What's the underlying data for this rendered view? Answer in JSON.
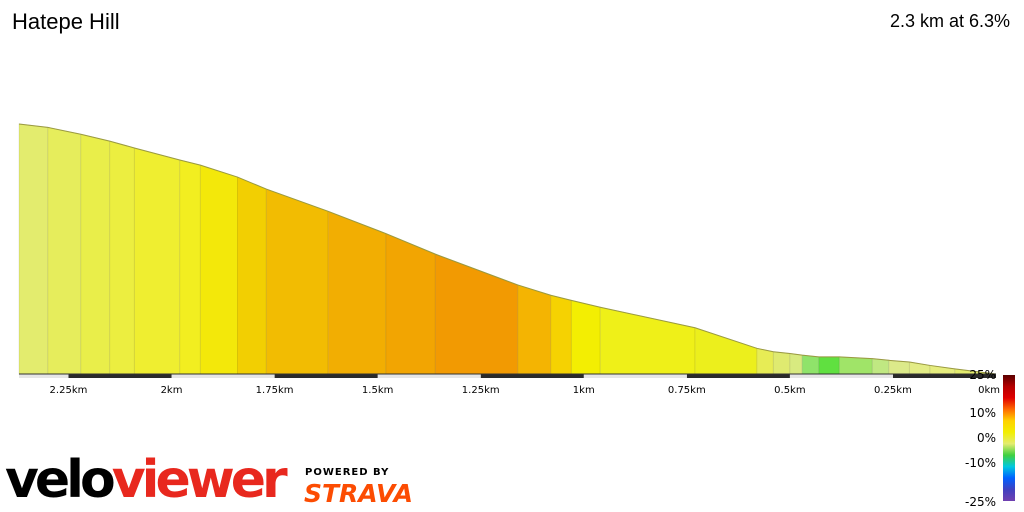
{
  "header": {
    "title": "Hatepe Hill",
    "summary": "2.3 km at 6.3%"
  },
  "branding": {
    "logo_part1": "velo",
    "logo_part2": "viewer",
    "powered_by": "POWERED BY",
    "strava": "STRAVA"
  },
  "chart_data": {
    "type": "area",
    "title": "Hatepe Hill",
    "xlabel": "",
    "ylabel": "",
    "x_direction": "reversed",
    "xlim": [
      2.37,
      0
    ],
    "x_unit": "km",
    "xticks": [
      {
        "value": 2.25,
        "label": "2.25km"
      },
      {
        "value": 2.0,
        "label": "2km"
      },
      {
        "value": 1.75,
        "label": "1.75km"
      },
      {
        "value": 1.5,
        "label": "1.5km"
      },
      {
        "value": 1.25,
        "label": "1.25km"
      },
      {
        "value": 1.0,
        "label": "1km"
      },
      {
        "value": 0.75,
        "label": "0.75km"
      },
      {
        "value": 0.5,
        "label": "0.5km"
      },
      {
        "value": 0.25,
        "label": "0.25km"
      },
      {
        "value": 0.0,
        "label": "0km"
      }
    ],
    "segments": [
      {
        "from": 2.37,
        "to": 2.3,
        "elev_start": 146,
        "elev_end": 144,
        "gradient": 2.5,
        "color": "#e3ec6e"
      },
      {
        "from": 2.3,
        "to": 2.22,
        "elev_start": 144,
        "elev_end": 140,
        "gradient": 3.0,
        "color": "#e6ed5c"
      },
      {
        "from": 2.22,
        "to": 2.15,
        "elev_start": 140,
        "elev_end": 136,
        "gradient": 3.5,
        "color": "#e9ee4a"
      },
      {
        "from": 2.15,
        "to": 2.09,
        "elev_start": 136,
        "elev_end": 132,
        "gradient": 4.0,
        "color": "#ecee40"
      },
      {
        "from": 2.09,
        "to": 1.98,
        "elev_start": 132,
        "elev_end": 125,
        "gradient": 4.5,
        "color": "#efee30"
      },
      {
        "from": 1.98,
        "to": 1.93,
        "elev_start": 125,
        "elev_end": 122,
        "gradient": 5.0,
        "color": "#f2ee20"
      },
      {
        "from": 1.93,
        "to": 1.84,
        "elev_start": 122,
        "elev_end": 115,
        "gradient": 6.0,
        "color": "#f3e80a"
      },
      {
        "from": 1.84,
        "to": 1.77,
        "elev_start": 115,
        "elev_end": 108,
        "gradient": 7.0,
        "color": "#f2cf02"
      },
      {
        "from": 1.77,
        "to": 1.62,
        "elev_start": 108,
        "elev_end": 95,
        "gradient": 8.0,
        "color": "#f2bc02"
      },
      {
        "from": 1.62,
        "to": 1.48,
        "elev_start": 95,
        "elev_end": 82,
        "gradient": 9.0,
        "color": "#f2ae02"
      },
      {
        "from": 1.48,
        "to": 1.36,
        "elev_start": 82,
        "elev_end": 70,
        "gradient": 10.0,
        "color": "#f2a502"
      },
      {
        "from": 1.36,
        "to": 1.16,
        "elev_start": 70,
        "elev_end": 52,
        "gradient": 11.0,
        "color": "#f29a02"
      },
      {
        "from": 1.16,
        "to": 1.08,
        "elev_start": 52,
        "elev_end": 46,
        "gradient": 8.0,
        "color": "#f4b402"
      },
      {
        "from": 1.08,
        "to": 1.03,
        "elev_start": 46,
        "elev_end": 43,
        "gradient": 6.5,
        "color": "#f5d202"
      },
      {
        "from": 1.03,
        "to": 0.96,
        "elev_start": 43,
        "elev_end": 39,
        "gradient": 5.5,
        "color": "#f3ee02"
      },
      {
        "from": 0.96,
        "to": 0.73,
        "elev_start": 39,
        "elev_end": 27,
        "gradient": 5.0,
        "color": "#eff018"
      },
      {
        "from": 0.73,
        "to": 0.58,
        "elev_start": 27,
        "elev_end": 15,
        "gradient": 4.0,
        "color": "#ecef1c"
      },
      {
        "from": 0.58,
        "to": 0.54,
        "elev_start": 15,
        "elev_end": 13,
        "gradient": 3.0,
        "color": "#e7ec55"
      },
      {
        "from": 0.54,
        "to": 0.5,
        "elev_start": 13,
        "elev_end": 12,
        "gradient": 2.5,
        "color": "#dfea70"
      },
      {
        "from": 0.5,
        "to": 0.47,
        "elev_start": 12,
        "elev_end": 11,
        "gradient": 2.0,
        "color": "#d8ea80"
      },
      {
        "from": 0.47,
        "to": 0.43,
        "elev_start": 11,
        "elev_end": 10,
        "gradient": 0.5,
        "color": "#8fe36a"
      },
      {
        "from": 0.43,
        "to": 0.38,
        "elev_start": 10,
        "elev_end": 10,
        "gradient": 0.0,
        "color": "#60e040"
      },
      {
        "from": 0.38,
        "to": 0.3,
        "elev_start": 10,
        "elev_end": 9,
        "gradient": 0.5,
        "color": "#a0e468"
      },
      {
        "from": 0.3,
        "to": 0.26,
        "elev_start": 9,
        "elev_end": 8,
        "gradient": 1.0,
        "color": "#c0e882"
      },
      {
        "from": 0.26,
        "to": 0.21,
        "elev_start": 8,
        "elev_end": 7,
        "gradient": 1.5,
        "color": "#dcea8a"
      },
      {
        "from": 0.21,
        "to": 0.16,
        "elev_start": 7,
        "elev_end": 5,
        "gradient": 2.0,
        "color": "#e3ec86"
      },
      {
        "from": 0.16,
        "to": 0.1,
        "elev_start": 5,
        "elev_end": 3,
        "gradient": 2.5,
        "color": "#e6ed7e"
      },
      {
        "from": 0.1,
        "to": 0.0,
        "elev_start": 3,
        "elev_end": 0,
        "gradient": 2.5,
        "color": "#e3ec6e"
      }
    ],
    "gradient_scale": {
      "labels": [
        "25%",
        "10%",
        "0%",
        "-10%",
        "-25%"
      ],
      "values": [
        25,
        10,
        0,
        -10,
        -25
      ],
      "colors": [
        "#5a0000",
        "#b40000",
        "#e00000",
        "#ff6a00",
        "#ffd200",
        "#f2ee02",
        "#e4ec70",
        "#40d040",
        "#00c8e0",
        "#0060ff",
        "#4040c0",
        "#7040b0"
      ]
    }
  }
}
